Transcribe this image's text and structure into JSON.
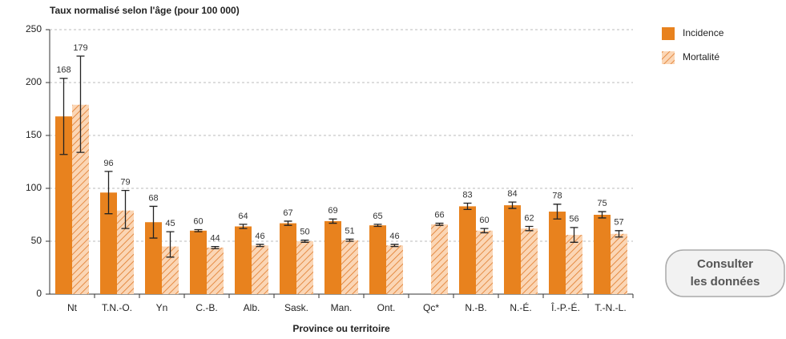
{
  "chart_data": {
    "type": "bar",
    "title": "Taux normalisé selon l'âge (pour 100 000)",
    "xlabel": "Province ou territoire",
    "categories": [
      "Nt",
      "T.N.-O.",
      "Yn",
      "C.-B.",
      "Alb.",
      "Sask.",
      "Man.",
      "Ont.",
      "Qc*",
      "N.-B.",
      "N.-É.",
      "Î.-P.-É.",
      "T.-N.-L."
    ],
    "series": [
      {
        "name": "Incidence",
        "color": "#e8821e",
        "pattern": "solid",
        "values": [
          168,
          96,
          68,
          60,
          64,
          67,
          69,
          65,
          null,
          83,
          84,
          78,
          75
        ],
        "ci_low": [
          132,
          76,
          53,
          59,
          62,
          65,
          67,
          64,
          null,
          80,
          81,
          71,
          72
        ],
        "ci_high": [
          204,
          116,
          83,
          61,
          66,
          69,
          71,
          66,
          null,
          86,
          87,
          85,
          78
        ]
      },
      {
        "name": "Mortalité",
        "color": "#e07a2a",
        "pattern": "hatch",
        "values": [
          179,
          79,
          45,
          44,
          46,
          50,
          51,
          46,
          66,
          60,
          62,
          56,
          57
        ],
        "ci_low": [
          134,
          62,
          35,
          43,
          45,
          49,
          50,
          45,
          65,
          58,
          60,
          49,
          54
        ],
        "ci_high": [
          225,
          98,
          59,
          45,
          47,
          51,
          52,
          47,
          67,
          62,
          64,
          63,
          60
        ]
      }
    ],
    "ylim": [
      0,
      250
    ],
    "yticks": [
      0,
      50,
      100,
      150,
      200,
      250
    ],
    "grid": true
  },
  "button": {
    "lines": [
      "Consulter",
      "les données"
    ]
  }
}
